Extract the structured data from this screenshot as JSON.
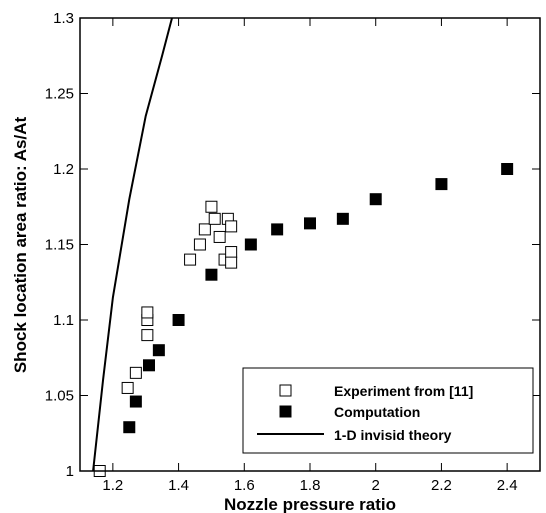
{
  "chart_data": {
    "type": "scatter",
    "title": "",
    "xlabel": "Nozzle pressure ratio",
    "ylabel": "Shock location area ratio: As/At",
    "xlim": [
      1.1,
      2.5
    ],
    "ylim": [
      1.0,
      1.3
    ],
    "x_ticks": [
      "1.2",
      "1.4",
      "1.6",
      "1.8",
      "2",
      "2.2",
      "2.4"
    ],
    "y_ticks": [
      "1",
      "1.05",
      "1.1",
      "1.15",
      "1.2",
      "1.25",
      "1.3"
    ],
    "x_tick_values": [
      1.2,
      1.4,
      1.6,
      1.8,
      2.0,
      2.2,
      2.4
    ],
    "y_tick_values": [
      1.0,
      1.05,
      1.1,
      1.15,
      1.2,
      1.25,
      1.3
    ],
    "grid": false,
    "legend_position": "bottom-right",
    "series": [
      {
        "name": "Experiment from [11]",
        "marker": "open-square",
        "color": "#000000",
        "points": [
          [
            1.16,
            1.0
          ],
          [
            1.245,
            1.055
          ],
          [
            1.27,
            1.065
          ],
          [
            1.305,
            1.09
          ],
          [
            1.305,
            1.1
          ],
          [
            1.305,
            1.105
          ],
          [
            1.435,
            1.14
          ],
          [
            1.465,
            1.15
          ],
          [
            1.48,
            1.16
          ],
          [
            1.5,
            1.175
          ],
          [
            1.51,
            1.167
          ],
          [
            1.525,
            1.155
          ],
          [
            1.54,
            1.14
          ],
          [
            1.55,
            1.167
          ],
          [
            1.56,
            1.162
          ],
          [
            1.56,
            1.145
          ],
          [
            1.56,
            1.138
          ]
        ]
      },
      {
        "name": "Computation",
        "marker": "filled-square",
        "color": "#000000",
        "points": [
          [
            1.25,
            1.029
          ],
          [
            1.27,
            1.046
          ],
          [
            1.31,
            1.07
          ],
          [
            1.34,
            1.08
          ],
          [
            1.4,
            1.1
          ],
          [
            1.5,
            1.13
          ],
          [
            1.62,
            1.15
          ],
          [
            1.7,
            1.16
          ],
          [
            1.8,
            1.164
          ],
          [
            1.9,
            1.167
          ],
          [
            2.0,
            1.18
          ],
          [
            2.2,
            1.19
          ],
          [
            2.4,
            1.2
          ]
        ]
      },
      {
        "name": "1-D invisid theory",
        "marker": "line",
        "color": "#000000",
        "points": [
          [
            1.14,
            1.0
          ],
          [
            1.17,
            1.06
          ],
          [
            1.2,
            1.115
          ],
          [
            1.25,
            1.18
          ],
          [
            1.3,
            1.235
          ],
          [
            1.35,
            1.275
          ],
          [
            1.38,
            1.3
          ]
        ]
      }
    ]
  }
}
